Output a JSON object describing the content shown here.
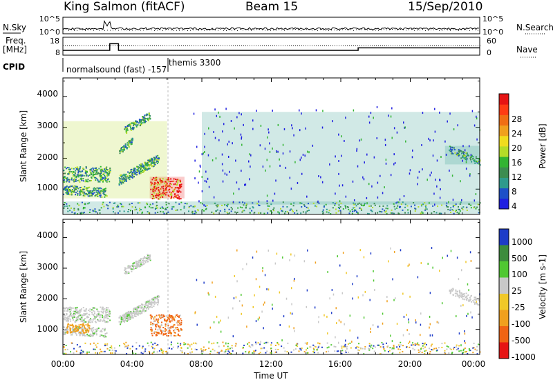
{
  "header": {
    "station": "King Salmon (fitACF)",
    "beam": "Beam 15",
    "date": "15/Sep/2010"
  },
  "params": {
    "nsky_label": "N.Sky",
    "nsky_ticks": [
      "10^5",
      "10^0"
    ],
    "nsearch_label": "N.Search",
    "nsearch_ticks": [
      "10^5",
      "10^0"
    ],
    "freq_label_1": "Freq.",
    "freq_label_2": "[MHz]",
    "freq_ticks": [
      "18",
      "8"
    ],
    "nave_label": "Nave",
    "nave_ticks": [
      "60",
      "0"
    ],
    "cpid_label": "CPID",
    "cpid_mode_1": "normalsound (fast)  -157",
    "cpid_mode_2": "themis 3300"
  },
  "axes": {
    "ylabel": "Slant Range [km]",
    "yticks": [
      "4000",
      "3000",
      "2000",
      "1000"
    ],
    "xticks": [
      "00:00",
      "04:00",
      "08:00",
      "12:00",
      "16:00",
      "20:00",
      "00:00"
    ],
    "xlabel": "Time UT"
  },
  "power_colorbar": {
    "label": "Power [dB]",
    "ticks": [
      "28",
      "24",
      "20",
      "16",
      "12",
      "8",
      "4"
    ],
    "colors": [
      "#1e1ee0",
      "#1e50c8",
      "#2f9a8c",
      "#3c8c50",
      "#32b432",
      "#b4dc28",
      "#f0dc1e",
      "#f0a01e",
      "#f06e14",
      "#ff3c14",
      "#e61414"
    ]
  },
  "velocity_colorbar": {
    "label": "Velocity [m s-1]",
    "ticks": [
      "1000",
      "500",
      "100",
      "25",
      "-25",
      "-100",
      "-500",
      "-1000"
    ],
    "colors": [
      "#1e3cc8",
      "#3c8c3c",
      "#50c832",
      "#c8c8c8",
      "#f0c828",
      "#f0a01e",
      "#f06414",
      "#e61414"
    ]
  },
  "chart_data": [
    {
      "type": "heatmap",
      "title": "Beam 15",
      "variable": "Power [dB]",
      "xlabel": "Time UT",
      "ylabel": "Slant Range [km]",
      "xlim_hours": [
        0,
        24
      ],
      "ylim_km": [
        180,
        4600
      ],
      "clim": [
        0,
        30
      ],
      "features": [
        {
          "feature": "high-power echo patch",
          "time_range_h": [
            5.0,
            7.0
          ],
          "range_km": [
            700,
            1400
          ],
          "power_db": 28
        },
        {
          "feature": "diagonal echo bands",
          "time_range_h": [
            0.0,
            6.0
          ],
          "range_km": [
            700,
            3200
          ],
          "power_db": 14
        },
        {
          "feature": "near-range ground scatter",
          "time_range_h": [
            0.0,
            24.0
          ],
          "range_km": [
            200,
            600
          ],
          "power_db": 8
        },
        {
          "feature": "scattered echoes",
          "time_range_h": [
            8.0,
            24.0
          ],
          "range_km": [
            500,
            3500
          ],
          "power_db": 6
        },
        {
          "feature": "late echo cluster",
          "time_range_h": [
            22.0,
            24.0
          ],
          "range_km": [
            1800,
            2400
          ],
          "power_db": 8
        }
      ]
    },
    {
      "type": "heatmap",
      "variable": "Velocity [m s-1]",
      "xlabel": "Time UT",
      "ylabel": "Slant Range [km]",
      "xlim_hours": [
        0,
        24
      ],
      "ylim_km": [
        180,
        4600
      ],
      "clim": [
        -1000,
        1000
      ],
      "features": [
        {
          "feature": "gray low-velocity bands",
          "time_range_h": [
            0.0,
            6.0
          ],
          "range_km": [
            700,
            3200
          ],
          "velocity_ms": 0
        },
        {
          "feature": "orange receding patch",
          "time_range_h": [
            5.0,
            7.0
          ],
          "range_km": [
            800,
            1500
          ],
          "velocity_ms": -300
        },
        {
          "feature": "near-range mixed echoes",
          "time_range_h": [
            0.0,
            24.0
          ],
          "range_km": [
            200,
            600
          ],
          "velocity_ms": -50
        },
        {
          "feature": "late gray cluster",
          "time_range_h": [
            22.0,
            24.0
          ],
          "range_km": [
            1800,
            2400
          ],
          "velocity_ms": 0
        }
      ]
    },
    {
      "type": "line",
      "variable": "Freq. [MHz]",
      "ylim": [
        8,
        18
      ],
      "x": [
        0,
        2.7,
        2.7,
        3.2,
        3.2,
        17.0,
        17.0,
        24
      ],
      "y": [
        10.5,
        10.5,
        14.5,
        14.5,
        10.5,
        10.5,
        12.0,
        12.0
      ]
    }
  ]
}
